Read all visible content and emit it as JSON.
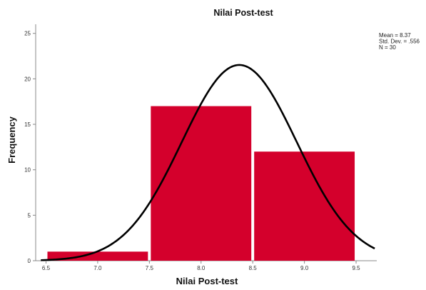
{
  "chart_data": {
    "type": "bar",
    "title": "Nilai Post-test",
    "xlabel": "Nilai Post-test",
    "ylabel": "Frequency",
    "bins": [
      {
        "from": 6.5,
        "to": 7.5,
        "count": 1
      },
      {
        "from": 7.5,
        "to": 8.5,
        "count": 17
      },
      {
        "from": 8.5,
        "to": 9.5,
        "count": 12
      }
    ],
    "x_ticks": [
      "6.5",
      "7.0",
      "7.5",
      "8.0",
      "8.5",
      "9.0",
      "9.5"
    ],
    "y_ticks": [
      "0",
      "5",
      "10",
      "15",
      "20",
      "25"
    ],
    "xlim": [
      6.4,
      9.7
    ],
    "ylim": [
      0,
      26
    ],
    "normal_curve": {
      "mean": 8.37,
      "sd": 0.556,
      "n": 30,
      "bin_width": 1
    },
    "stats_lines": [
      "Mean = 8.37",
      "Std. Dev. = .556",
      "N = 30"
    ],
    "bar_color": "#d4002c",
    "curve_color": "#000000",
    "grid": false
  }
}
